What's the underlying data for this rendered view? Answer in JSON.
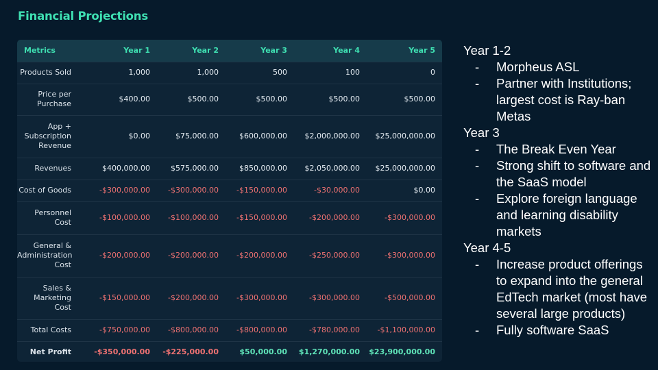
{
  "title": "Financial Projections",
  "table": {
    "headers": [
      "Metrics",
      "Year 1",
      "Year 2",
      "Year 3",
      "Year 4",
      "Year 5"
    ],
    "rows": [
      {
        "metric": "Products Sold",
        "values": [
          "1,000",
          "1,000",
          "500",
          "100",
          "0"
        ],
        "tones": [
          "",
          "",
          "",
          "",
          ""
        ],
        "height": 32
      },
      {
        "metric": "Price per Purchase",
        "values": [
          "$400.00",
          "$500.00",
          "$500.00",
          "$500.00",
          "$500.00"
        ],
        "tones": [
          "",
          "",
          "",
          "",
          ""
        ],
        "height": 46
      },
      {
        "metric": "App + Subscription Revenue",
        "values": [
          "$0.00",
          "$75,000.00",
          "$600,000.00",
          "$2,000,000.00",
          "$25,000,000.00"
        ],
        "tones": [
          "",
          "",
          "",
          "",
          ""
        ],
        "height": 62
      },
      {
        "metric": "Revenues",
        "values": [
          "$400,000.00",
          "$575,000.00",
          "$850,000.00",
          "$2,050,000.00",
          "$25,000,000.00"
        ],
        "tones": [
          "",
          "",
          "",
          "",
          ""
        ],
        "height": 32
      },
      {
        "metric": "Cost of Goods",
        "values": [
          "-$300,000.00",
          "-$300,000.00",
          "-$150,000.00",
          "-$30,000.00",
          "$0.00"
        ],
        "tones": [
          "neg",
          "neg",
          "neg",
          "neg",
          ""
        ],
        "height": 32
      },
      {
        "metric": "Personnel Cost",
        "values": [
          "-$100,000.00",
          "-$100,000.00",
          "-$150,000.00",
          "-$200,000.00",
          "-$300,000.00"
        ],
        "tones": [
          "neg",
          "neg",
          "neg",
          "neg",
          "neg"
        ],
        "height": 48
      },
      {
        "metric": "General & Administration Cost",
        "values": [
          "-$200,000.00",
          "-$200,000.00",
          "-$200,000.00",
          "-$250,000.00",
          "-$300,000.00"
        ],
        "tones": [
          "neg",
          "neg",
          "neg",
          "neg",
          "neg"
        ],
        "height": 62
      },
      {
        "metric": "Sales & Marketing Cost",
        "values": [
          "-$150,000.00",
          "-$200,000.00",
          "-$300,000.00",
          "-$300,000.00",
          "-$500,000.00"
        ],
        "tones": [
          "neg",
          "neg",
          "neg",
          "neg",
          "neg"
        ],
        "height": 62
      },
      {
        "metric": "Total Costs",
        "values": [
          "-$750,000.00",
          "-$800,000.00",
          "-$800,000.00",
          "-$780,000.00",
          "-$1,100,000.00"
        ],
        "tones": [
          "neg",
          "neg",
          "neg",
          "neg",
          "neg"
        ],
        "height": 32
      },
      {
        "metric": "Net Profit",
        "values": [
          "-$350,000.00",
          "-$225,000.00",
          "$50,000.00",
          "$1,270,000.00",
          "$23,900,000.00"
        ],
        "tones": [
          "neg",
          "neg",
          "pos",
          "pos",
          "pos"
        ],
        "height": 32,
        "bold": true
      }
    ]
  },
  "notes": [
    {
      "year": "Year 1-2",
      "bullets": [
        "Morpheus ASL",
        "Partner with Institutions; largest cost is Ray-ban Metas"
      ]
    },
    {
      "year": "Year 3",
      "bullets": [
        "The Break Even Year",
        "Strong shift to software and the SaaS model",
        "Explore foreign language and learning disability markets"
      ]
    },
    {
      "year": "Year 4-5",
      "bullets": [
        "Increase product offerings to expand into the general EdTech market (most have several large products)",
        "Fully software SaaS"
      ]
    }
  ],
  "colors": {
    "background": "#061a2b",
    "accent": "#3fe0b2",
    "negative": "#f07272",
    "positive": "#5fe3b8"
  }
}
